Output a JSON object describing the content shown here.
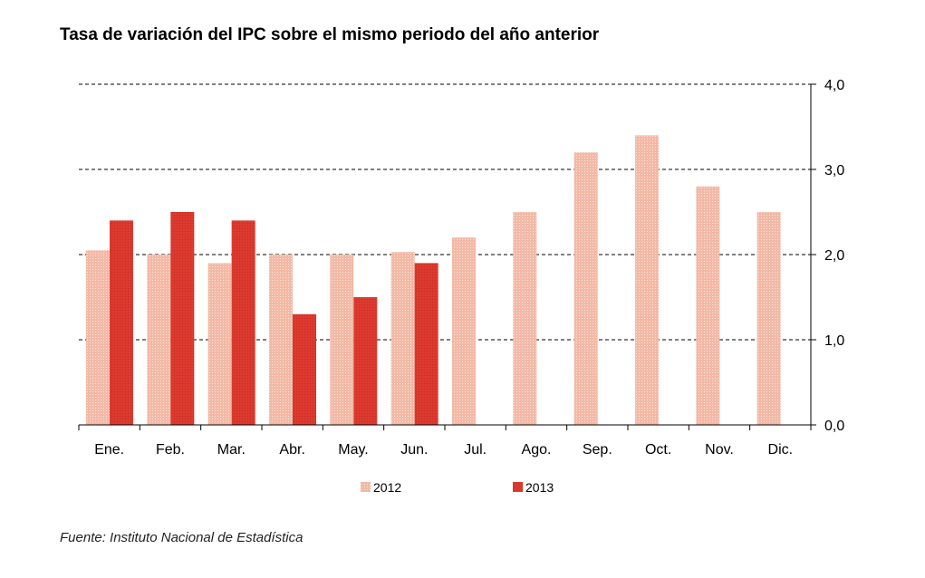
{
  "title": "Tasa de variación del IPC sobre el mismo periodo del año anterior",
  "source": "Fuente: Instituto Nacional de Estadística",
  "colors": {
    "s2012": "#f2b9a6",
    "s2013": "#dc3a2f"
  },
  "chart_data": {
    "type": "bar",
    "title": "Tasa de variación del IPC sobre el mismo periodo del año anterior",
    "xlabel": "",
    "ylabel": "",
    "ylim": [
      0,
      4
    ],
    "yticks": [
      "0,0",
      "1,0",
      "2,0",
      "3,0",
      "4,0"
    ],
    "grid": true,
    "legend": "bottom",
    "categories": [
      "Ene.",
      "Feb.",
      "Mar.",
      "Abr.",
      "May.",
      "Jun.",
      "Jul.",
      "Ago.",
      "Sep.",
      "Oct.",
      "Nov.",
      "Dic."
    ],
    "series": [
      {
        "name": "2012",
        "values": [
          2.05,
          2.0,
          1.9,
          2.0,
          2.0,
          2.03,
          2.2,
          2.5,
          3.2,
          3.4,
          2.8,
          2.5
        ]
      },
      {
        "name": "2013",
        "values": [
          2.4,
          2.5,
          2.4,
          1.3,
          1.5,
          1.9,
          null,
          null,
          null,
          null,
          null,
          null
        ]
      }
    ]
  }
}
